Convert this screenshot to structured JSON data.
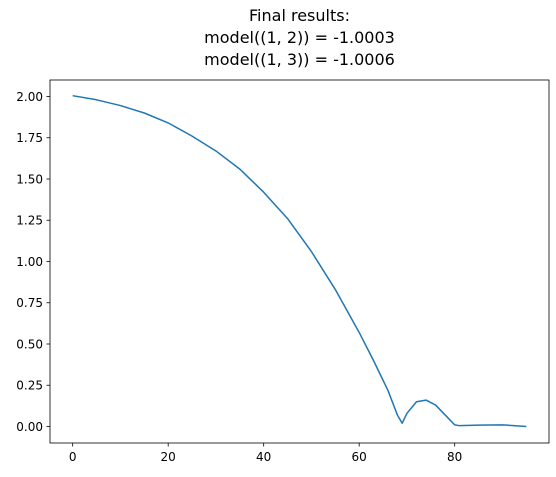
{
  "chart_data": {
    "type": "line",
    "title_lines": [
      "Final results:",
      "model((1, 2)) = -1.0003",
      "model((1, 3)) = -1.0006"
    ],
    "xlabel": "",
    "ylabel": "",
    "xlim": [
      -4.75,
      99.75
    ],
    "ylim": [
      -0.1,
      2.1
    ],
    "xticks": [
      0,
      20,
      40,
      60,
      80
    ],
    "xtick_labels": [
      "0",
      "20",
      "40",
      "60",
      "80"
    ],
    "yticks": [
      0.0,
      0.25,
      0.5,
      0.75,
      1.0,
      1.25,
      1.5,
      1.75,
      2.0
    ],
    "ytick_labels": [
      "0.00",
      "0.25",
      "0.50",
      "0.75",
      "1.00",
      "1.25",
      "1.50",
      "1.75",
      "2.00"
    ],
    "grid": false,
    "series": [
      {
        "color": "#1f77b4",
        "x": [
          0,
          5,
          10,
          15,
          20,
          25,
          30,
          35,
          40,
          45,
          50,
          55,
          60,
          63,
          66,
          68,
          69,
          70,
          72,
          74,
          76,
          78,
          80,
          81,
          85,
          90,
          95
        ],
        "y": [
          2.005,
          1.98,
          1.945,
          1.9,
          1.84,
          1.76,
          1.67,
          1.56,
          1.42,
          1.26,
          1.06,
          0.83,
          0.57,
          0.4,
          0.22,
          0.07,
          0.02,
          0.08,
          0.15,
          0.16,
          0.13,
          0.07,
          0.01,
          0.005,
          0.008,
          0.01,
          0.0
        ]
      }
    ]
  }
}
